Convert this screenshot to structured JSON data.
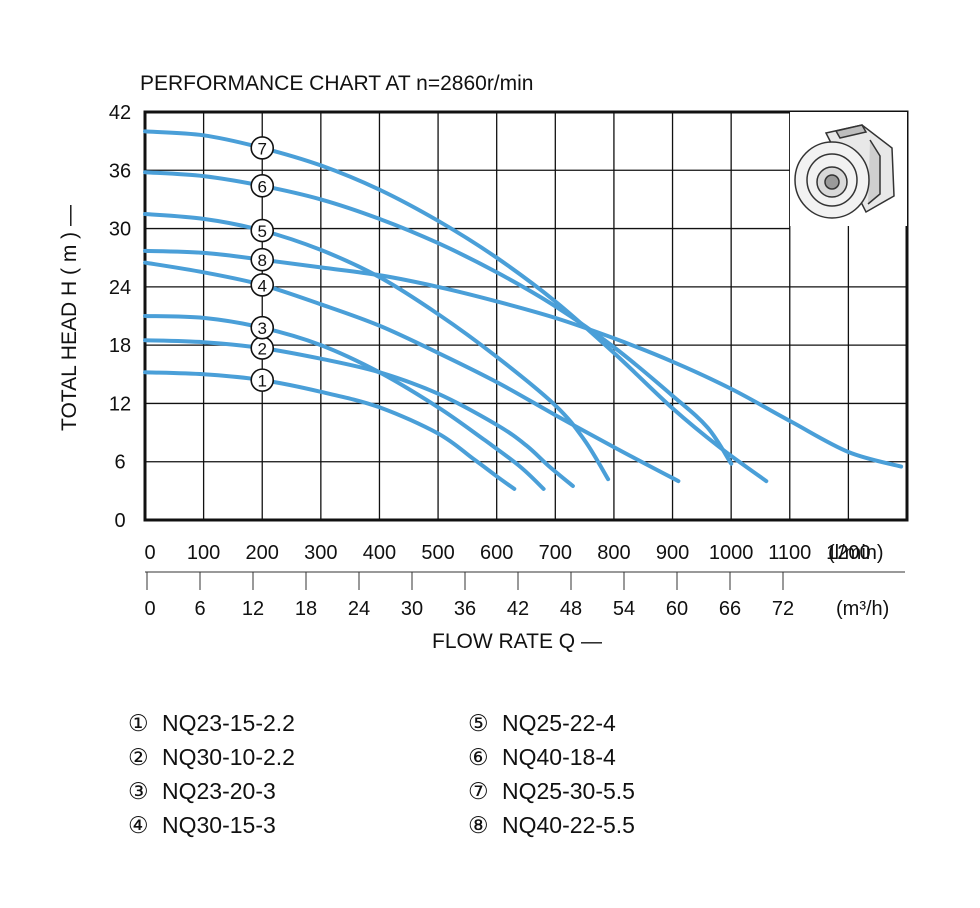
{
  "chart_data": {
    "type": "line",
    "title": "PERFORMANCE CHART AT  n=2860r/min",
    "ylabel": "TOTAL HEAD  H ( m )  —",
    "xlabel": "FLOW RATE  Q  —",
    "ylim": [
      0,
      42
    ],
    "xlim_lmin": [
      0,
      1300
    ],
    "y_ticks": [
      "0",
      "6",
      "12",
      "18",
      "24",
      "30",
      "36",
      "42"
    ],
    "x_ticks_lmin": [
      "0",
      "100",
      "200",
      "300",
      "400",
      "500",
      "600",
      "700",
      "800",
      "900",
      "1000",
      "1100",
      "1200"
    ],
    "x_unit_lmin": "(l/min)",
    "x_ticks_m3h": [
      "0",
      "6",
      "12",
      "18",
      "24",
      "30",
      "36",
      "42",
      "48",
      "54",
      "60",
      "66",
      "72"
    ],
    "x_unit_m3h": "(m³/h)",
    "grid": true,
    "series": [
      {
        "id": "1",
        "marker": "①",
        "name": "NQ23-15-2.2",
        "x": [
          0,
          100,
          200,
          300,
          400,
          500,
          560,
          600,
          630
        ],
        "y": [
          15.2,
          15.0,
          14.4,
          13.2,
          11.6,
          8.9,
          6.3,
          4.5,
          3.2
        ]
      },
      {
        "id": "2",
        "marker": "②",
        "name": "NQ30-10-2.2",
        "x": [
          0,
          100,
          200,
          300,
          400,
          500,
          600,
          650,
          690,
          730
        ],
        "y": [
          18.5,
          18.3,
          17.7,
          16.6,
          15.2,
          13.0,
          9.8,
          7.7,
          5.5,
          3.5
        ]
      },
      {
        "id": "3",
        "marker": "③",
        "name": "NQ23-20-3",
        "x": [
          0,
          100,
          200,
          300,
          400,
          500,
          580,
          640,
          680
        ],
        "y": [
          21.0,
          20.8,
          19.8,
          18.0,
          15.2,
          11.6,
          8.2,
          5.5,
          3.2
        ]
      },
      {
        "id": "4",
        "marker": "④",
        "name": "NQ30-15-3",
        "x": [
          0,
          100,
          200,
          300,
          400,
          500,
          600,
          700,
          800,
          910
        ],
        "y": [
          26.5,
          25.5,
          24.2,
          22.2,
          20.0,
          17.2,
          14.2,
          10.8,
          7.5,
          4.0
        ]
      },
      {
        "id": "5",
        "marker": "⑤",
        "name": "NQ25-22-4",
        "x": [
          0,
          100,
          200,
          300,
          400,
          500,
          600,
          700,
          750,
          790
        ],
        "y": [
          31.5,
          31.0,
          29.8,
          27.8,
          25.0,
          21.2,
          16.8,
          11.8,
          8.2,
          4.2
        ]
      },
      {
        "id": "6",
        "marker": "⑥",
        "name": "NQ40-18-4",
        "x": [
          0,
          100,
          200,
          300,
          400,
          500,
          600,
          700,
          800,
          900,
          960,
          1000
        ],
        "y": [
          35.8,
          35.4,
          34.4,
          33.0,
          31.0,
          28.5,
          25.5,
          22.0,
          17.8,
          12.8,
          9.5,
          5.8
        ]
      },
      {
        "id": "7",
        "marker": "⑦",
        "name": "NQ25-30-5.5",
        "x": [
          0,
          100,
          200,
          300,
          400,
          500,
          600,
          700,
          800,
          900,
          980,
          1060
        ],
        "y": [
          40.0,
          39.6,
          38.3,
          36.5,
          34.0,
          30.8,
          27.0,
          22.5,
          17.2,
          11.5,
          7.5,
          4.0
        ]
      },
      {
        "id": "8",
        "marker": "⑧",
        "name": "NQ40-22-5.5",
        "x": [
          0,
          100,
          200,
          300,
          400,
          500,
          600,
          700,
          800,
          900,
          1000,
          1100,
          1200,
          1290
        ],
        "y": [
          27.7,
          27.5,
          26.8,
          26.0,
          25.2,
          24.0,
          22.5,
          20.8,
          18.7,
          16.3,
          13.5,
          10.2,
          7.0,
          5.5
        ]
      }
    ]
  }
}
